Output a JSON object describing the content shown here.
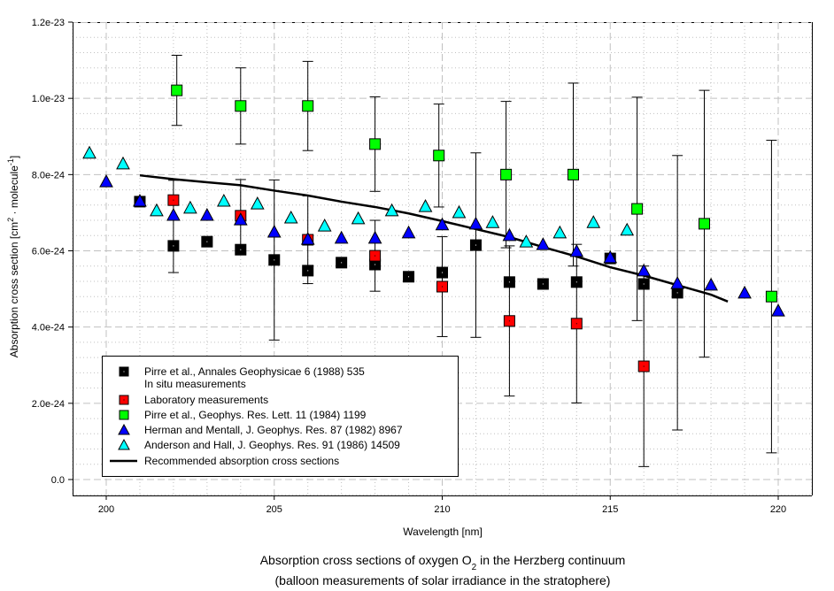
{
  "chart_data": {
    "type": "scatter",
    "title": "",
    "caption_line1_pre": "Absorption cross sections of oxygen O",
    "caption_line1_sub": "2",
    "caption_line1_post": " in the Herzberg continuum",
    "caption_line2": "(balloon measurements of solar irradiance in the stratophere)",
    "xlabel": "Wavelength [nm]",
    "ylabel_pre": "Absorption cross section [cm",
    "ylabel_sup1": "2",
    "ylabel_mid": " · molecule",
    "ylabel_sup2": "-1",
    "ylabel_post": "]",
    "xlim": [
      199,
      221
    ],
    "ylim": [
      -4.2e-25,
      1.2e-23
    ],
    "y_unit": 1e-24,
    "x_ticks": [
      200,
      205,
      210,
      215,
      220
    ],
    "x_tick_labels": [
      "200",
      "205",
      "210",
      "215",
      "220"
    ],
    "y_ticks": [
      0,
      2,
      4,
      6,
      8,
      10,
      12
    ],
    "y_tick_labels": [
      "0.0",
      "2.0e-24",
      "4.0e-24",
      "6.0e-24",
      "8.0e-24",
      "1.0e-23",
      "1.2e-23"
    ],
    "grid": true,
    "legend_position": "bottom-left",
    "series": [
      {
        "name": "Pirre et al., Annales Geophysicae 6 (1988) 535",
        "name_line2": "In situ measurements",
        "marker": "square",
        "color": "#000000",
        "points": [
          {
            "x": 201,
            "y": 7.29
          },
          {
            "x": 202,
            "y": 6.13,
            "err": 0.7
          },
          {
            "x": 203,
            "y": 6.24
          },
          {
            "x": 204,
            "y": 6.03
          },
          {
            "x": 205,
            "y": 5.76,
            "err": 2.1
          },
          {
            "x": 206,
            "y": 5.48
          },
          {
            "x": 207,
            "y": 5.69
          },
          {
            "x": 208,
            "y": 5.64
          },
          {
            "x": 209,
            "y": 5.32
          },
          {
            "x": 210,
            "y": 5.43
          },
          {
            "x": 211,
            "y": 6.15,
            "err": 2.42
          },
          {
            "x": 212,
            "y": 5.18
          },
          {
            "x": 213,
            "y": 5.13
          },
          {
            "x": 214,
            "y": 5.18
          },
          {
            "x": 215,
            "y": 5.8
          },
          {
            "x": 216,
            "y": 5.13
          },
          {
            "x": 217,
            "y": 4.9,
            "err": 3.6
          }
        ]
      },
      {
        "name": "Laboratory measurements",
        "marker": "square",
        "color": "#ff0000",
        "points": [
          {
            "x": 202,
            "y": 7.33,
            "err": 0.52
          },
          {
            "x": 204,
            "y": 6.92,
            "err": 0.95
          },
          {
            "x": 206,
            "y": 6.29,
            "err": 1.15
          },
          {
            "x": 208,
            "y": 5.87,
            "err": 0.93
          },
          {
            "x": 210,
            "y": 5.06,
            "err": 1.31
          },
          {
            "x": 212,
            "y": 4.16,
            "err": 1.97
          },
          {
            "x": 214,
            "y": 4.09,
            "err": 2.08
          },
          {
            "x": 216,
            "y": 2.97,
            "err": 2.63
          }
        ]
      },
      {
        "name": "Pirre et al., Geophys. Res. Lett. 11 (1984) 1199",
        "marker": "square",
        "color": "#00ff00",
        "points": [
          {
            "x": 202.1,
            "y": 10.21,
            "err": 0.92
          },
          {
            "x": 204,
            "y": 9.8,
            "err": 1.0
          },
          {
            "x": 206,
            "y": 9.8,
            "err": 1.17
          },
          {
            "x": 208,
            "y": 8.8,
            "err": 1.24
          },
          {
            "x": 209.9,
            "y": 8.5,
            "err": 1.35
          },
          {
            "x": 211.9,
            "y": 8.0,
            "err": 1.92
          },
          {
            "x": 213.9,
            "y": 8.0,
            "err": 2.4
          },
          {
            "x": 215.8,
            "y": 7.1,
            "err": 2.93
          },
          {
            "x": 217.8,
            "y": 6.71,
            "err": 3.5
          },
          {
            "x": 219.8,
            "y": 4.8,
            "err": 4.1
          }
        ]
      },
      {
        "name": "Herman and Mentall, J. Geophys. Res. 87 (1982) 8967",
        "marker": "triangle",
        "color": "#0000ff",
        "points": [
          {
            "x": 200,
            "y": 7.82
          },
          {
            "x": 201,
            "y": 7.31
          },
          {
            "x": 202,
            "y": 6.94
          },
          {
            "x": 203,
            "y": 6.94
          },
          {
            "x": 204,
            "y": 6.82
          },
          {
            "x": 205,
            "y": 6.5
          },
          {
            "x": 206,
            "y": 6.31
          },
          {
            "x": 207,
            "y": 6.34
          },
          {
            "x": 208,
            "y": 6.34
          },
          {
            "x": 209,
            "y": 6.48
          },
          {
            "x": 210,
            "y": 6.69
          },
          {
            "x": 211,
            "y": 6.71
          },
          {
            "x": 212,
            "y": 6.41
          },
          {
            "x": 213,
            "y": 6.17
          },
          {
            "x": 214,
            "y": 5.99
          },
          {
            "x": 215,
            "y": 5.83
          },
          {
            "x": 216,
            "y": 5.48
          },
          {
            "x": 217,
            "y": 5.15
          },
          {
            "x": 218,
            "y": 5.11
          },
          {
            "x": 219,
            "y": 4.9
          },
          {
            "x": 220,
            "y": 4.43
          }
        ]
      },
      {
        "name": "Anderson and Hall, J. Geophys. Res. 91 (1986) 14509",
        "marker": "triangle",
        "color": "#00ffff",
        "points": [
          {
            "x": 199.5,
            "y": 8.57
          },
          {
            "x": 200.5,
            "y": 8.29
          },
          {
            "x": 201.5,
            "y": 7.06
          },
          {
            "x": 202.5,
            "y": 7.13
          },
          {
            "x": 203.5,
            "y": 7.31
          },
          {
            "x": 204.5,
            "y": 7.24
          },
          {
            "x": 205.5,
            "y": 6.87
          },
          {
            "x": 206.5,
            "y": 6.66
          },
          {
            "x": 207.5,
            "y": 6.85
          },
          {
            "x": 208.5,
            "y": 7.06
          },
          {
            "x": 209.5,
            "y": 7.17
          },
          {
            "x": 210.5,
            "y": 7.01
          },
          {
            "x": 211.5,
            "y": 6.75
          },
          {
            "x": 212.5,
            "y": 6.24
          },
          {
            "x": 213.5,
            "y": 6.48
          },
          {
            "x": 214.5,
            "y": 6.75
          },
          {
            "x": 215.5,
            "y": 6.55
          }
        ]
      },
      {
        "name": "Recommended absorption cross sections",
        "marker": "line",
        "color": "#000000",
        "points": [
          {
            "x": 201,
            "y": 7.98
          },
          {
            "x": 202,
            "y": 7.88
          },
          {
            "x": 203,
            "y": 7.8
          },
          {
            "x": 204,
            "y": 7.72
          },
          {
            "x": 205,
            "y": 7.58
          },
          {
            "x": 206,
            "y": 7.45
          },
          {
            "x": 207,
            "y": 7.29
          },
          {
            "x": 208,
            "y": 7.15
          },
          {
            "x": 209,
            "y": 6.98
          },
          {
            "x": 210,
            "y": 6.78
          },
          {
            "x": 211,
            "y": 6.57
          },
          {
            "x": 212,
            "y": 6.36
          },
          {
            "x": 213,
            "y": 6.1
          },
          {
            "x": 214,
            "y": 5.85
          },
          {
            "x": 215,
            "y": 5.57
          },
          {
            "x": 216,
            "y": 5.35
          },
          {
            "x": 217,
            "y": 5.1
          },
          {
            "x": 218,
            "y": 4.85
          },
          {
            "x": 218.5,
            "y": 4.67
          }
        ]
      }
    ]
  }
}
